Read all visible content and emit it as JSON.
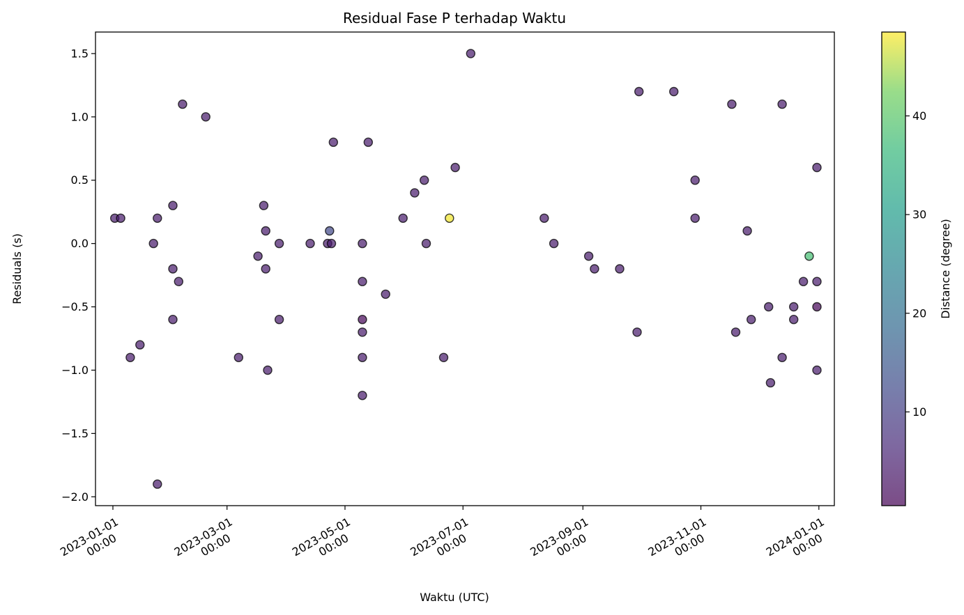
{
  "chart_data": {
    "type": "scatter",
    "title": "Residual Fase P terhadap Waktu",
    "xlabel": "Waktu (UTC)",
    "ylabel": "Residuals (s)",
    "colorbar_label": "Distance (degree)",
    "x_type": "date",
    "xlim": [
      "2022-12-23",
      "2024-01-09"
    ],
    "ylim": [
      -2.07,
      1.67
    ],
    "x_ticks": [
      {
        "date": "2023-01-01",
        "label": "2023-01-01",
        "sublabel": "00:00"
      },
      {
        "date": "2023-03-01",
        "label": "2023-03-01",
        "sublabel": "00:00"
      },
      {
        "date": "2023-05-01",
        "label": "2023-05-01",
        "sublabel": "00:00"
      },
      {
        "date": "2023-07-01",
        "label": "2023-07-01",
        "sublabel": "00:00"
      },
      {
        "date": "2023-09-01",
        "label": "2023-09-01",
        "sublabel": "00:00"
      },
      {
        "date": "2023-11-01",
        "label": "2023-11-01",
        "sublabel": "00:00"
      },
      {
        "date": "2024-01-01",
        "label": "2024-01-01",
        "sublabel": "00:00"
      }
    ],
    "y_ticks": [
      {
        "value": 1.5,
        "label": "1.5"
      },
      {
        "value": 1.0,
        "label": "1.0"
      },
      {
        "value": 0.5,
        "label": "0.5"
      },
      {
        "value": 0.0,
        "label": "0.0"
      },
      {
        "value": -0.5,
        "label": "−0.5"
      },
      {
        "value": -1.0,
        "label": "−1.0"
      },
      {
        "value": -1.5,
        "label": "−1.5"
      },
      {
        "value": -2.0,
        "label": "−2.0"
      }
    ],
    "colorbar": {
      "cmap": "viridis",
      "alpha": 0.7,
      "range": [
        0.5,
        48.5
      ],
      "ticks": [
        {
          "value": 10,
          "label": "10"
        },
        {
          "value": 20,
          "label": "20"
        },
        {
          "value": 30,
          "label": "30"
        },
        {
          "value": 40,
          "label": "40"
        }
      ]
    },
    "points": [
      {
        "x": "2023-01-02",
        "y": 0.2,
        "c": 4
      },
      {
        "x": "2023-01-05",
        "y": 0.2,
        "c": 4
      },
      {
        "x": "2023-01-10",
        "y": -0.9,
        "c": 4
      },
      {
        "x": "2023-01-15",
        "y": -0.8,
        "c": 4
      },
      {
        "x": "2023-01-22",
        "y": 0.0,
        "c": 4
      },
      {
        "x": "2023-01-24",
        "y": 0.2,
        "c": 4
      },
      {
        "x": "2023-01-24",
        "y": -1.9,
        "c": 4
      },
      {
        "x": "2023-02-01",
        "y": 0.3,
        "c": 4
      },
      {
        "x": "2023-02-01",
        "y": -0.2,
        "c": 4
      },
      {
        "x": "2023-02-01",
        "y": -0.6,
        "c": 4
      },
      {
        "x": "2023-02-04",
        "y": -0.3,
        "c": 4
      },
      {
        "x": "2023-02-06",
        "y": 1.1,
        "c": 4
      },
      {
        "x": "2023-02-18",
        "y": 1.0,
        "c": 4
      },
      {
        "x": "2023-03-07",
        "y": -0.9,
        "c": 4
      },
      {
        "x": "2023-03-17",
        "y": -0.1,
        "c": 4
      },
      {
        "x": "2023-03-20",
        "y": 0.3,
        "c": 4
      },
      {
        "x": "2023-03-21",
        "y": 0.1,
        "c": 4
      },
      {
        "x": "2023-03-21",
        "y": -0.2,
        "c": 4
      },
      {
        "x": "2023-03-22",
        "y": -1.0,
        "c": 4
      },
      {
        "x": "2023-03-28",
        "y": 0.0,
        "c": 4
      },
      {
        "x": "2023-03-28",
        "y": -0.6,
        "c": 4
      },
      {
        "x": "2023-04-13",
        "y": 0.0,
        "c": 4
      },
      {
        "x": "2023-04-22",
        "y": 0.0,
        "c": 4
      },
      {
        "x": "2023-04-23",
        "y": 0.1,
        "c": 12
      },
      {
        "x": "2023-04-24",
        "y": 0.0,
        "c": 4
      },
      {
        "x": "2023-04-25",
        "y": 0.8,
        "c": 4
      },
      {
        "x": "2023-05-10",
        "y": 0.0,
        "c": 4
      },
      {
        "x": "2023-05-10",
        "y": -0.3,
        "c": 4
      },
      {
        "x": "2023-05-10",
        "y": -0.6,
        "c": 1
      },
      {
        "x": "2023-05-10",
        "y": -0.7,
        "c": 4
      },
      {
        "x": "2023-05-10",
        "y": -0.9,
        "c": 4
      },
      {
        "x": "2023-05-10",
        "y": -1.2,
        "c": 4
      },
      {
        "x": "2023-05-13",
        "y": 0.8,
        "c": 4
      },
      {
        "x": "2023-05-22",
        "y": -0.4,
        "c": 4
      },
      {
        "x": "2023-05-31",
        "y": 0.2,
        "c": 4
      },
      {
        "x": "2023-06-06",
        "y": 0.4,
        "c": 4
      },
      {
        "x": "2023-06-11",
        "y": 0.5,
        "c": 4
      },
      {
        "x": "2023-06-12",
        "y": 0.0,
        "c": 4
      },
      {
        "x": "2023-06-21",
        "y": -0.9,
        "c": 4
      },
      {
        "x": "2023-06-24",
        "y": 0.2,
        "c": 48
      },
      {
        "x": "2023-06-27",
        "y": 0.6,
        "c": 4
      },
      {
        "x": "2023-07-05",
        "y": 1.5,
        "c": 4
      },
      {
        "x": "2023-08-12",
        "y": 0.2,
        "c": 4
      },
      {
        "x": "2023-08-17",
        "y": 0.0,
        "c": 4
      },
      {
        "x": "2023-09-04",
        "y": -0.1,
        "c": 4
      },
      {
        "x": "2023-09-07",
        "y": -0.2,
        "c": 4
      },
      {
        "x": "2023-09-20",
        "y": -0.2,
        "c": 4
      },
      {
        "x": "2023-09-29",
        "y": -0.7,
        "c": 4
      },
      {
        "x": "2023-09-30",
        "y": 1.2,
        "c": 4
      },
      {
        "x": "2023-10-18",
        "y": 1.2,
        "c": 4
      },
      {
        "x": "2023-10-29",
        "y": 0.5,
        "c": 4
      },
      {
        "x": "2023-10-29",
        "y": 0.2,
        "c": 4
      },
      {
        "x": "2023-11-17",
        "y": 1.1,
        "c": 4
      },
      {
        "x": "2023-11-19",
        "y": -0.7,
        "c": 4
      },
      {
        "x": "2023-11-25",
        "y": 0.1,
        "c": 4
      },
      {
        "x": "2023-11-27",
        "y": -0.6,
        "c": 4
      },
      {
        "x": "2023-12-06",
        "y": -0.5,
        "c": 4
      },
      {
        "x": "2023-12-07",
        "y": -1.1,
        "c": 4
      },
      {
        "x": "2023-12-13",
        "y": 1.1,
        "c": 4
      },
      {
        "x": "2023-12-13",
        "y": -0.9,
        "c": 4
      },
      {
        "x": "2023-12-19",
        "y": -0.5,
        "c": 4
      },
      {
        "x": "2023-12-19",
        "y": -0.6,
        "c": 4
      },
      {
        "x": "2023-12-24",
        "y": -0.3,
        "c": 4
      },
      {
        "x": "2023-12-27",
        "y": -0.1,
        "c": 38
      },
      {
        "x": "2023-12-31",
        "y": 0.6,
        "c": 4
      },
      {
        "x": "2023-12-31",
        "y": -0.3,
        "c": 4
      },
      {
        "x": "2023-12-31",
        "y": -0.5,
        "c": 1
      },
      {
        "x": "2023-12-31",
        "y": -1.0,
        "c": 4
      }
    ]
  }
}
